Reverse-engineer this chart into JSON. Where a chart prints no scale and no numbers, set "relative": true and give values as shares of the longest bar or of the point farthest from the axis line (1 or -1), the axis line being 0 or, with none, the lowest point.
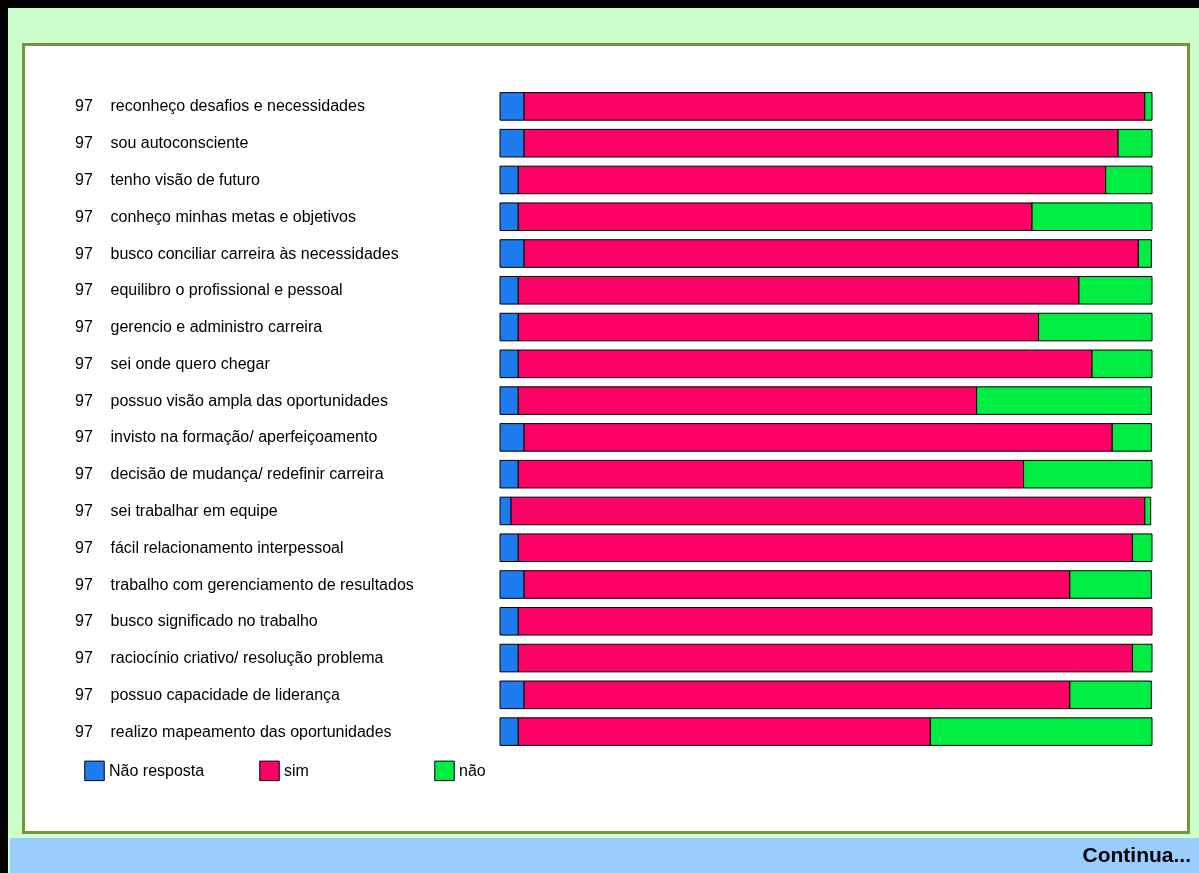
{
  "chart_data": {
    "type": "bar",
    "orientation": "horizontal",
    "stacked": true,
    "relative": true,
    "legend": "bottom left",
    "annotations": [
      "97",
      "97",
      "97",
      "97",
      "97",
      "97",
      "97",
      "97",
      "97",
      "97",
      "97",
      "97",
      "97",
      "97",
      "97",
      "97",
      "97",
      "97",
      "Continua..."
    ],
    "categories": [
      " reconheço desafios e necessidades",
      "sou autoconsciente",
      "tenho visão de futuro",
      "conheço minhas metas e objetivos",
      "busco conciliar carreira às necessidades",
      "equilibro o profissional e pessoal",
      "gerencio e administro carreira",
      "sei onde quero chegar",
      "possuo visão ampla das oportunidades",
      "invisto na formação/ aperfeiçoamento",
      "decisão de mudança/ redefinir carreira",
      "sei trabalhar em equipe",
      "fácil relacionamento interpessoal",
      "trabalho com gerenciamento de resultados",
      "busco significado no trabalho",
      "raciocínio criativo/ resolução problema",
      "possuo capacidade de liderança",
      "realizo mapeamento das oportunidades"
    ],
    "series": [
      {
        "name": "Não resposta",
        "color": "#1e7cf0",
        "values": [
          0.037,
          0.037,
          0.028,
          0.028,
          0.037,
          0.028,
          0.028,
          0.028,
          0.028,
          0.037,
          0.028,
          0.017,
          0.028,
          0.037,
          0.028,
          0.028,
          0.037,
          0.028
        ]
      },
      {
        "name": "sim",
        "color": "#ff0066",
        "values": [
          0.952,
          0.911,
          0.901,
          0.788,
          0.942,
          0.86,
          0.798,
          0.88,
          0.703,
          0.902,
          0.775,
          0.972,
          0.942,
          0.837,
          0.972,
          0.942,
          0.837,
          0.632
        ]
      },
      {
        "name": "não",
        "color": "#00ee44",
        "values": [
          0.011,
          0.052,
          0.071,
          0.184,
          0.02,
          0.112,
          0.174,
          0.092,
          0.268,
          0.06,
          0.197,
          0.009,
          0.03,
          0.125,
          0,
          0.03,
          0.125,
          0.34
        ]
      }
    ]
  }
}
